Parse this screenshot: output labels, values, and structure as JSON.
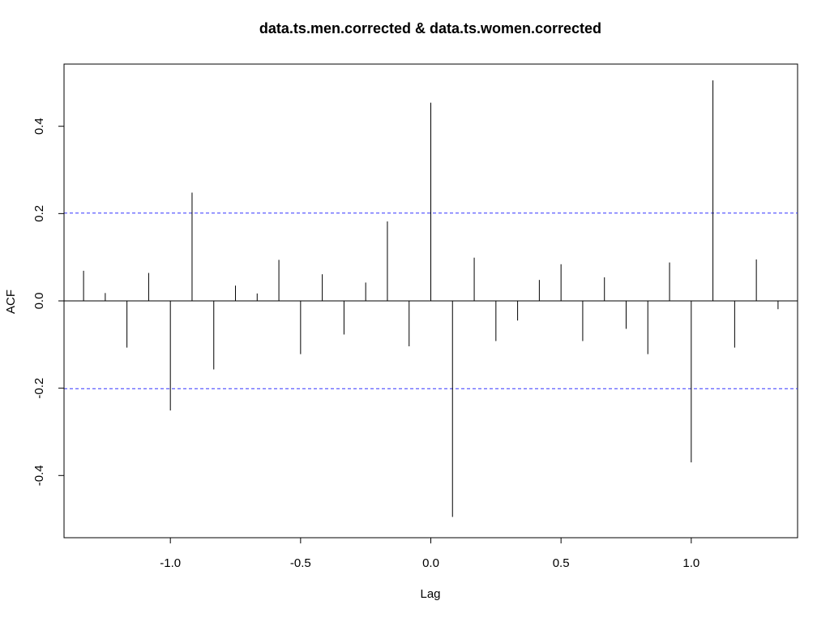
{
  "chart_data": {
    "type": "bar",
    "title": "data.ts.men.corrected & data.ts.women.corrected",
    "xlabel": "Lag",
    "ylabel": "ACF",
    "xlim": [
      -1.4083,
      1.4083
    ],
    "ylim": [
      -0.5425,
      0.5425
    ],
    "x_ticks": [
      -1.0,
      -0.5,
      0.0,
      0.5,
      1.0
    ],
    "x_tick_labels": [
      "-1.0",
      "-0.5",
      "0.0",
      "0.5",
      "1.0"
    ],
    "y_ticks": [
      -0.4,
      -0.2,
      0.0,
      0.2,
      0.4
    ],
    "y_tick_labels": [
      "-0.4",
      "-0.2",
      "0.0",
      "0.2",
      "0.4"
    ],
    "confidence_bounds": [
      0.201,
      -0.201
    ],
    "confidence_color": "#3333ff",
    "grid": false,
    "series": [
      {
        "x": [
          -1.3333,
          -1.25,
          -1.1667,
          -1.0833,
          -1.0,
          -0.9167,
          -0.8333,
          -0.75,
          -0.6667,
          -0.5833,
          -0.5,
          -0.4167,
          -0.3333,
          -0.25,
          -0.1667,
          -0.0833,
          0.0,
          0.0833,
          0.1667,
          0.25,
          0.3333,
          0.4167,
          0.5,
          0.5833,
          0.6667,
          0.75,
          0.8333,
          0.9167,
          1.0,
          1.0833,
          1.1667,
          1.25,
          1.3333
        ],
        "values": [
          0.069,
          0.018,
          -0.107,
          0.064,
          -0.251,
          0.248,
          -0.157,
          0.035,
          0.017,
          0.094,
          -0.122,
          0.061,
          -0.077,
          0.042,
          0.182,
          -0.104,
          0.454,
          -0.495,
          0.099,
          -0.092,
          -0.045,
          0.048,
          0.084,
          -0.092,
          0.054,
          -0.064,
          -0.122,
          0.088,
          -0.37,
          0.505,
          -0.107,
          0.095,
          -0.019
        ]
      }
    ]
  }
}
